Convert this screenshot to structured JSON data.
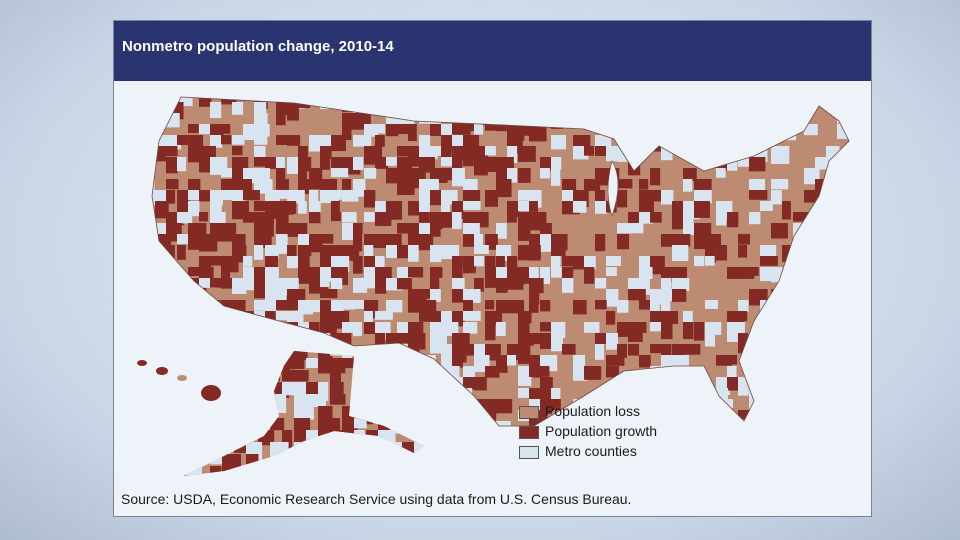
{
  "title": "Nonmetro population change, 2010-14",
  "legend": [
    {
      "label": "Population loss",
      "color": "#bd8a72"
    },
    {
      "label": "Population growth",
      "color": "#842a24"
    },
    {
      "label": "Metro counties",
      "color": "#d9e4f1"
    }
  ],
  "source": "Source: USDA, Economic Research Service using data from U.S. Census Bureau."
}
